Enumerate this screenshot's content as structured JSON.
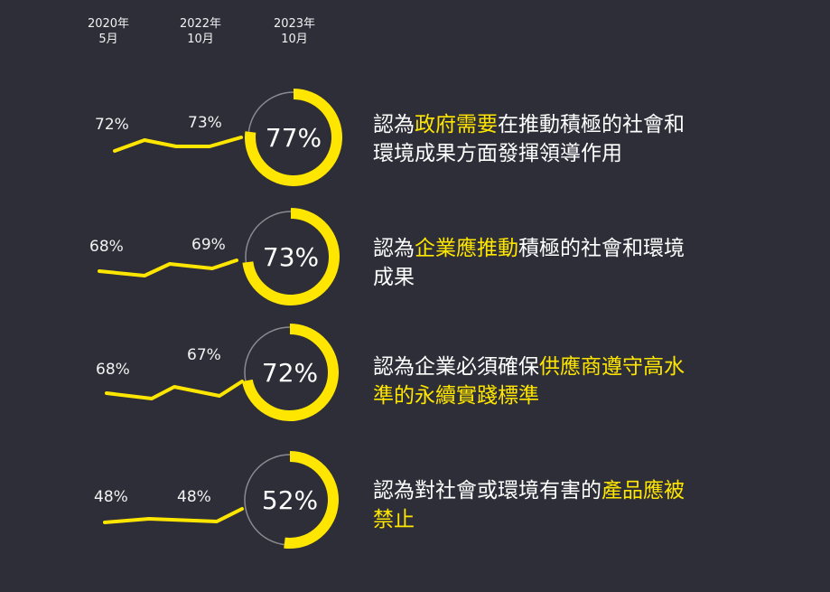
{
  "colors": {
    "background": "#2e2e38",
    "accent": "#ffe600",
    "track": "#8a8a90",
    "text": "#ffffff"
  },
  "periods": [
    {
      "year": "2020年",
      "month": "5月"
    },
    {
      "year": "2022年",
      "month": "10月"
    },
    {
      "year": "2023年",
      "month": "10月"
    }
  ],
  "rows": [
    {
      "v2020": "72%",
      "v2022": "73%",
      "v2023": "77%",
      "value": 77,
      "lines": [
        [
          {
            "t": "認為",
            "h": false
          },
          {
            "t": "政府需要",
            "h": true
          },
          {
            "t": "在推動積極的社會和",
            "h": false
          }
        ],
        [
          {
            "t": "環境成果方面發揮領導作用",
            "h": false
          }
        ]
      ]
    },
    {
      "v2020": "68%",
      "v2022": "69%",
      "v2023": "73%",
      "value": 73,
      "lines": [
        [
          {
            "t": "認為",
            "h": false
          },
          {
            "t": "企業應推動",
            "h": true
          },
          {
            "t": "積極的社會和環境",
            "h": false
          }
        ],
        [
          {
            "t": "成果",
            "h": false
          }
        ]
      ]
    },
    {
      "v2020": "68%",
      "v2022": "67%",
      "v2023": "72%",
      "value": 72,
      "lines": [
        [
          {
            "t": "認為企業必須確保",
            "h": false
          },
          {
            "t": "供應商遵守高水",
            "h": true
          }
        ],
        [
          {
            "t": "準的永續實踐標準",
            "h": true
          }
        ]
      ]
    },
    {
      "v2020": "48%",
      "v2022": "48%",
      "v2023": "52%",
      "value": 52,
      "lines": [
        [
          {
            "t": "認為對社會或環境有害的",
            "h": false
          },
          {
            "t": "產品應被",
            "h": true
          }
        ],
        [
          {
            "t": "禁止",
            "h": true
          }
        ]
      ]
    }
  ]
}
